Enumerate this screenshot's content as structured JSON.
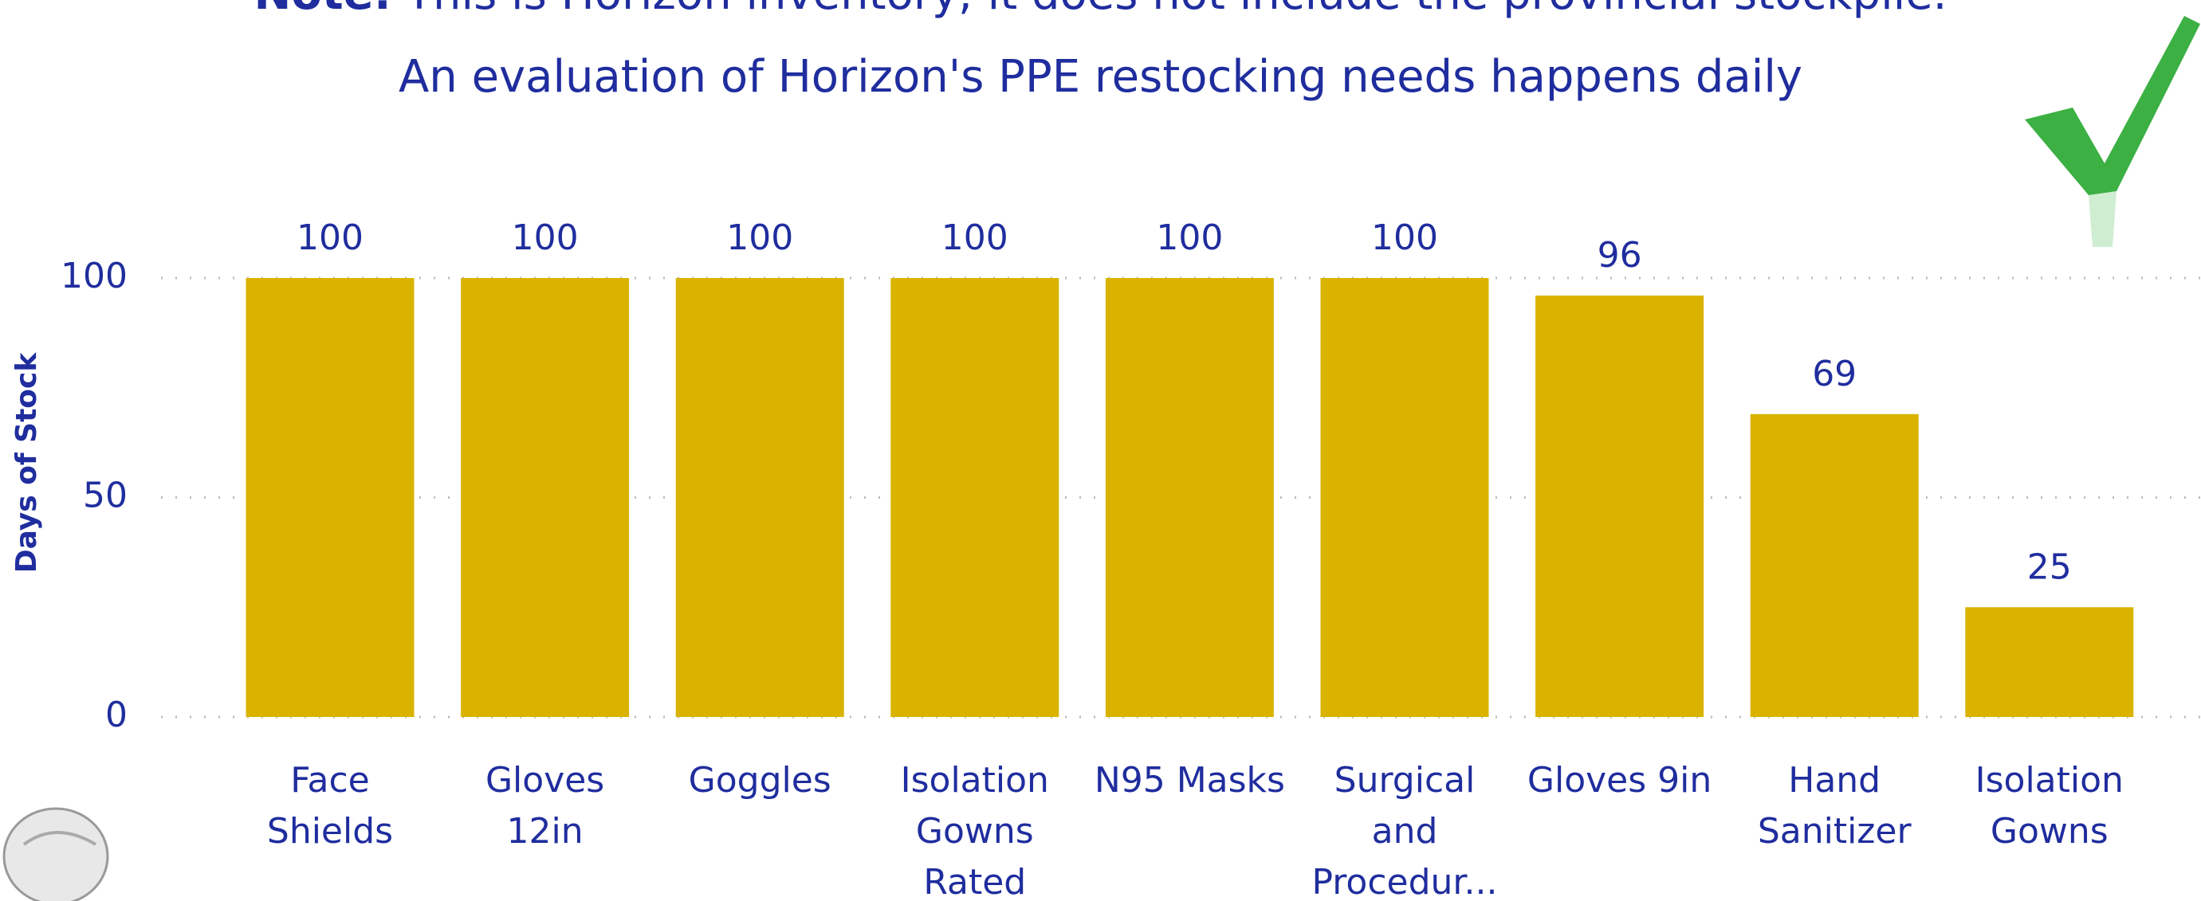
{
  "chart_data": {
    "type": "bar",
    "title_note": "Note:",
    "title": "This is Horizon inventory; it does not include the provincial stockpile.",
    "subtitle": "An evaluation of Horizon's PPE restocking needs happens daily",
    "y_label": "Days of Stock",
    "categories": [
      "Face Shields",
      "Gloves 12in",
      "Goggles",
      "Isolation Gowns Rated",
      "N95 Masks",
      "Surgical and Procedur...",
      "Gloves 9in",
      "Hand Sanitizer",
      "Isolation Gowns"
    ],
    "values": [
      100,
      100,
      100,
      100,
      100,
      100,
      96,
      69,
      25
    ],
    "color": "#d9b300",
    "ylim": [
      0,
      100
    ],
    "yticks": [
      0,
      50,
      100
    ],
    "grid": true
  }
}
